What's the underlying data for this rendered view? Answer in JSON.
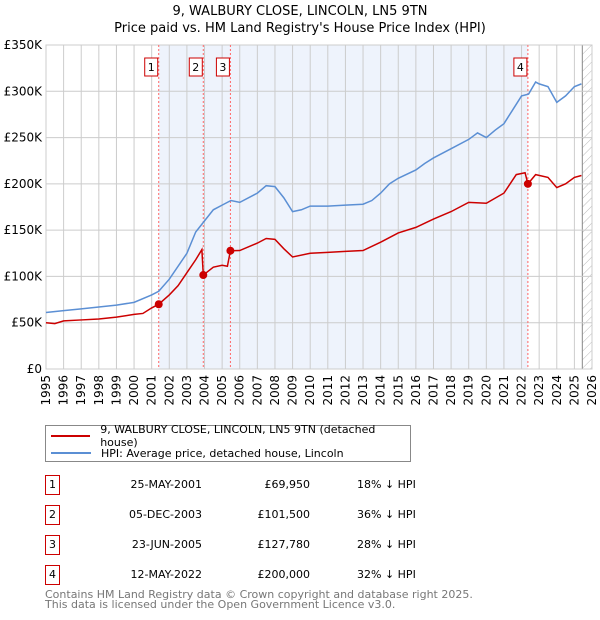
{
  "title": "9, WALBURY CLOSE, LINCOLN, LN5 9TN",
  "subtitle": "Price paid vs. HM Land Registry's House Price Index (HPI)",
  "chart_data": {
    "type": "line",
    "xlim": [
      1995,
      2026
    ],
    "ylim": [
      0,
      350000
    ],
    "yticks": [
      {
        "v": 0,
        "l": "£0"
      },
      {
        "v": 50000,
        "l": "£50K"
      },
      {
        "v": 100000,
        "l": "£100K"
      },
      {
        "v": 150000,
        "l": "£150K"
      },
      {
        "v": 200000,
        "l": "£200K"
      },
      {
        "v": 250000,
        "l": "£250K"
      },
      {
        "v": 300000,
        "l": "£300K"
      },
      {
        "v": 350000,
        "l": "£350K"
      }
    ],
    "xticks": [
      "1995",
      "1996",
      "1997",
      "1998",
      "1999",
      "2000",
      "2001",
      "2002",
      "2003",
      "2004",
      "2005",
      "2006",
      "2007",
      "2008",
      "2009",
      "2010",
      "2011",
      "2012",
      "2013",
      "2014",
      "2015",
      "2016",
      "2017",
      "2018",
      "2019",
      "2020",
      "2021",
      "2022",
      "2023",
      "2024",
      "2025",
      "2026"
    ],
    "shaded_range": [
      2001.4,
      2022.36
    ],
    "forecast_from": 2025.45,
    "series": [
      {
        "name": "9, WALBURY CLOSE, LINCOLN, LN5 9TN (detached house)",
        "color": "#cc0000",
        "points": [
          [
            1995,
            50
          ],
          [
            1995.5,
            49
          ],
          [
            1996,
            52
          ],
          [
            1997,
            53
          ],
          [
            1998,
            54
          ],
          [
            1999,
            56
          ],
          [
            2000,
            59
          ],
          [
            2000.5,
            60
          ],
          [
            2001,
            66
          ],
          [
            2001.4,
            70
          ],
          [
            2002,
            80
          ],
          [
            2002.5,
            90
          ],
          [
            2003,
            104
          ],
          [
            2003.5,
            118
          ],
          [
            2003.85,
            129
          ],
          [
            2003.93,
            101.5
          ],
          [
            2004.5,
            110
          ],
          [
            2005,
            112
          ],
          [
            2005.3,
            111
          ],
          [
            2005.47,
            127.8
          ],
          [
            2006,
            128
          ],
          [
            2007,
            136
          ],
          [
            2007.5,
            141
          ],
          [
            2008,
            140
          ],
          [
            2008.5,
            130
          ],
          [
            2009,
            121
          ],
          [
            2010,
            125
          ],
          [
            2011,
            126
          ],
          [
            2012,
            127
          ],
          [
            2013,
            128
          ],
          [
            2014,
            137
          ],
          [
            2015,
            147
          ],
          [
            2016,
            153
          ],
          [
            2017,
            162
          ],
          [
            2018,
            170
          ],
          [
            2019,
            180
          ],
          [
            2020,
            179
          ],
          [
            2021,
            190
          ],
          [
            2021.7,
            210
          ],
          [
            2022.2,
            212
          ],
          [
            2022.36,
            200
          ],
          [
            2022.8,
            210
          ],
          [
            2023.5,
            207
          ],
          [
            2024,
            196
          ],
          [
            2024.5,
            200
          ],
          [
            2025,
            207
          ],
          [
            2025.4,
            209
          ]
        ]
      },
      {
        "name": "HPI: Average price, detached house, Lincoln",
        "color": "#5b8fd4",
        "points": [
          [
            1995,
            61
          ],
          [
            1996,
            63
          ],
          [
            1997,
            65
          ],
          [
            1998,
            67
          ],
          [
            1999,
            69
          ],
          [
            2000,
            72
          ],
          [
            2001,
            80
          ],
          [
            2001.4,
            84
          ],
          [
            2002,
            97
          ],
          [
            2003,
            125
          ],
          [
            2003.5,
            148
          ],
          [
            2004,
            160
          ],
          [
            2004.5,
            172
          ],
          [
            2005,
            177
          ],
          [
            2005.5,
            182
          ],
          [
            2006,
            180
          ],
          [
            2007,
            190
          ],
          [
            2007.5,
            198
          ],
          [
            2008,
            197
          ],
          [
            2008.5,
            185
          ],
          [
            2009,
            170
          ],
          [
            2009.5,
            172
          ],
          [
            2010,
            176
          ],
          [
            2011,
            176
          ],
          [
            2012,
            177
          ],
          [
            2013,
            178
          ],
          [
            2013.5,
            182
          ],
          [
            2014,
            190
          ],
          [
            2014.5,
            200
          ],
          [
            2015,
            206
          ],
          [
            2016,
            215
          ],
          [
            2016.5,
            222
          ],
          [
            2017,
            228
          ],
          [
            2018,
            238
          ],
          [
            2019,
            248
          ],
          [
            2019.5,
            255
          ],
          [
            2020,
            250
          ],
          [
            2020.5,
            258
          ],
          [
            2021,
            265
          ],
          [
            2021.5,
            280
          ],
          [
            2022,
            295
          ],
          [
            2022.4,
            297
          ],
          [
            2022.8,
            310
          ],
          [
            2023,
            308
          ],
          [
            2023.5,
            305
          ],
          [
            2024,
            288
          ],
          [
            2024.5,
            295
          ],
          [
            2025,
            305
          ],
          [
            2025.4,
            308
          ]
        ]
      }
    ],
    "sales": [
      {
        "n": "1",
        "x": 2001.4,
        "y": 69950
      },
      {
        "n": "2",
        "x": 2003.93,
        "y": 101500
      },
      {
        "n": "3",
        "x": 2005.47,
        "y": 127780
      },
      {
        "n": "4",
        "x": 2022.36,
        "y": 200000
      }
    ]
  },
  "legend": [
    "9, WALBURY CLOSE, LINCOLN, LN5 9TN (detached house)",
    "HPI: Average price, detached house, Lincoln"
  ],
  "transactions": [
    {
      "n": "1",
      "date": "25-MAY-2001",
      "price": "£69,950",
      "diff": "18% ↓ HPI"
    },
    {
      "n": "2",
      "date": "05-DEC-2003",
      "price": "£101,500",
      "diff": "36% ↓ HPI"
    },
    {
      "n": "3",
      "date": "23-JUN-2005",
      "price": "£127,780",
      "diff": "28% ↓ HPI"
    },
    {
      "n": "4",
      "date": "12-MAY-2022",
      "price": "£200,000",
      "diff": "32% ↓ HPI"
    }
  ],
  "footer": [
    "Contains HM Land Registry data © Crown copyright and database right 2025.",
    "This data is licensed under the Open Government Licence v3.0."
  ]
}
